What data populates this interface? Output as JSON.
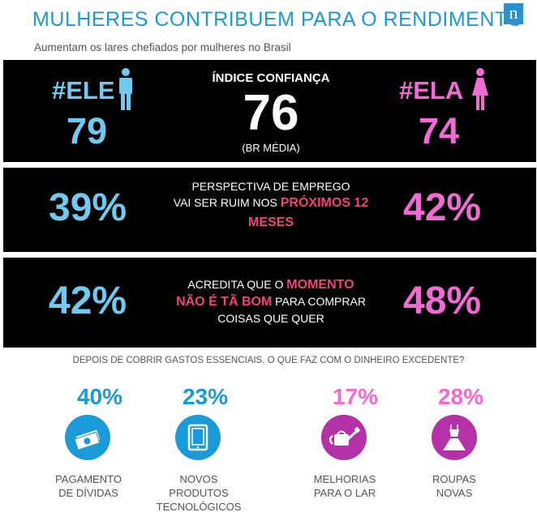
{
  "header": {
    "title": "MULHERES CONTRIBUEM PARA O RENDIMENTO",
    "subtitle": "Aumentam os lares chefiados por mulheres no Brasil",
    "logo": "n"
  },
  "confidence": {
    "male_tag": "#ELE",
    "male_value": "79",
    "label": "ÍNDICE CONFIANÇA",
    "value": "76",
    "note": "(BR MÉDIA)",
    "female_tag": "#ELA",
    "female_value": "74"
  },
  "job_outlook": {
    "male_pct": "39%",
    "line1": "PERSPECTIVA DE EMPREGO",
    "line2_prefix": "VAI SER RUIM NOS ",
    "line2_highlight": "PRÓXIMOS 12",
    "line3_highlight": "MESES",
    "female_pct": "42%"
  },
  "buy_moment": {
    "male_pct": "42%",
    "line1_prefix": "ACREDITA QUE O ",
    "line1_highlight": "MOMENTO",
    "line2_highlight": "NÃO É TÃ BOM",
    "line2_suffix": " PARA COMPRAR",
    "line3": "COISAS QUE QUER",
    "female_pct": "48%"
  },
  "spending": {
    "question": "DEPOIS DE COBRIR GASTOS ESSENCIAIS, O QUE FAZ COM O DINHEIRO EXCEDENTE?",
    "options": [
      {
        "pct": "40%",
        "line1": "PAGAMENTO",
        "line2": "DE DÍVIDAS",
        "line3": "",
        "icon": "money-icon"
      },
      {
        "pct": "23%",
        "line1": "NOVOS",
        "line2": "PRODUTOS",
        "line3": "TECNOLÓGICOS",
        "icon": "tablet-icon"
      },
      {
        "pct": "17%",
        "line1": "MELHORIAS",
        "line2": "PARA O LAR",
        "line3": "",
        "icon": "watering-can-icon"
      },
      {
        "pct": "28%",
        "line1": "ROUPAS",
        "line2": "NOVAS",
        "line3": "",
        "icon": "dress-icon"
      }
    ]
  },
  "colors": {
    "title_blue": "#1a9ad6",
    "male_blue": "#6fc9f0",
    "female_pink": "#f06bd4",
    "highlight_pink": "#f0427e",
    "icon_purple": "#b431a8"
  }
}
